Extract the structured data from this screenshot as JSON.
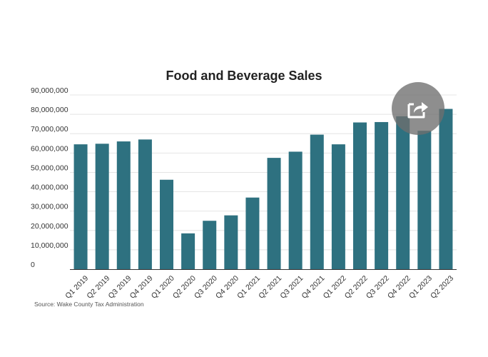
{
  "chart_data": {
    "type": "bar",
    "title": "Food and Beverage Sales",
    "xlabel": "",
    "ylabel": "",
    "ylim": [
      0,
      90000000
    ],
    "yticks": [
      0,
      10000000,
      20000000,
      30000000,
      40000000,
      50000000,
      60000000,
      70000000,
      80000000,
      90000000
    ],
    "ytick_labels": [
      "0",
      "10,000,000",
      "20,000,000",
      "30,000,000",
      "40,000,000",
      "50,000,000",
      "60,000,000",
      "70,000,000",
      "80,000,000",
      "90,000,000"
    ],
    "grid": true,
    "categories": [
      "Q1 2019",
      "Q2 2019",
      "Q3 2019",
      "Q4 2019",
      "Q1 2020",
      "Q2 2020",
      "Q3 2020",
      "Q4 2020",
      "Q1 2021",
      "Q2 2021",
      "Q3 2021",
      "Q4 2021",
      "Q1 2022",
      "Q2 2022",
      "Q3 2022",
      "Q4 2022",
      "Q1 2023",
      "Q2 2023"
    ],
    "values": [
      64500000,
      64800000,
      66000000,
      67000000,
      46200000,
      18500000,
      25000000,
      27800000,
      37000000,
      57500000,
      60700000,
      69500000,
      64500000,
      75800000,
      76000000,
      79000000,
      71500000,
      82800000
    ],
    "source": "Source: Wake County Tax Administration"
  },
  "colors": {
    "bar": "#2e7180",
    "grid": "#e4e4e4",
    "axis": "#333333",
    "share_button": "#6e6e6e"
  },
  "icons": {
    "share": "share-icon"
  }
}
